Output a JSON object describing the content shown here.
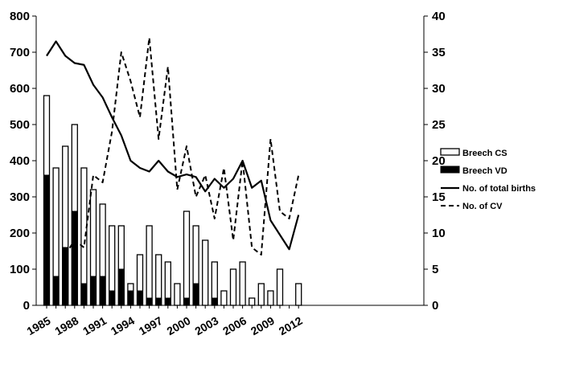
{
  "chart_data": {
    "type": "bar",
    "title": "",
    "xlabel": "",
    "ylabel": "",
    "y2label": "",
    "x": [
      1985,
      1986,
      1987,
      1988,
      1989,
      1990,
      1991,
      1992,
      1993,
      1994,
      1995,
      1996,
      1997,
      1998,
      1999,
      2000,
      2001,
      2002,
      2003,
      2004,
      2005,
      2006,
      2007,
      2008,
      2009,
      2010,
      2011,
      2012
    ],
    "x_tick_labels": [
      "1985",
      "1988",
      "1991",
      "1994",
      "1997",
      "2000",
      "2003",
      "2006",
      "2009",
      "2012"
    ],
    "x_tick_values": [
      1985,
      1988,
      1991,
      1994,
      1997,
      2000,
      2003,
      2006,
      2009,
      2012
    ],
    "ylim": [
      0,
      800
    ],
    "y_ticks": [
      "0",
      "100",
      "200",
      "300",
      "400",
      "500",
      "600",
      "700",
      "800"
    ],
    "y2lim": [
      0,
      40
    ],
    "y2_ticks": [
      "0",
      "5",
      "10",
      "15",
      "20",
      "25",
      "30",
      "35",
      "40"
    ],
    "legend_position": "right",
    "grid": false,
    "series": [
      {
        "name": "Breech CS",
        "kind": "bar",
        "axis": "left",
        "color": "#ffffff",
        "stroke": "#000000",
        "values": [
          580,
          380,
          440,
          500,
          380,
          320,
          280,
          220,
          220,
          60,
          140,
          220,
          140,
          120,
          60,
          260,
          220,
          180,
          120,
          40,
          100,
          120,
          20,
          60,
          40,
          100,
          0,
          60
        ]
      },
      {
        "name": "Breech VD",
        "kind": "bar",
        "axis": "left",
        "color": "#000000",
        "values": [
          360,
          80,
          160,
          260,
          60,
          80,
          80,
          40,
          100,
          40,
          40,
          20,
          20,
          20,
          0,
          20,
          60,
          0,
          20,
          0,
          0,
          0,
          0,
          0,
          0,
          0,
          0,
          0
        ]
      },
      {
        "name": "No. of total births",
        "kind": "line",
        "axis": "left",
        "color": "#000000",
        "dash": "solid",
        "values": [
          690,
          730,
          690,
          670,
          665,
          610,
          575,
          520,
          470,
          400,
          380,
          370,
          400,
          370,
          355,
          362,
          355,
          315,
          350,
          325,
          350,
          400,
          325,
          345,
          235,
          195,
          155,
          250
        ]
      },
      {
        "name": "No. of CV",
        "kind": "line",
        "axis": "right",
        "color": "#000000",
        "dash": "dashed",
        "values": [
          null,
          null,
          7,
          9,
          8,
          18,
          17,
          24,
          35,
          31,
          26,
          37,
          23,
          33,
          16,
          22,
          15,
          18,
          12,
          19,
          9,
          20,
          8,
          7,
          23,
          13,
          12,
          18
        ]
      }
    ]
  }
}
